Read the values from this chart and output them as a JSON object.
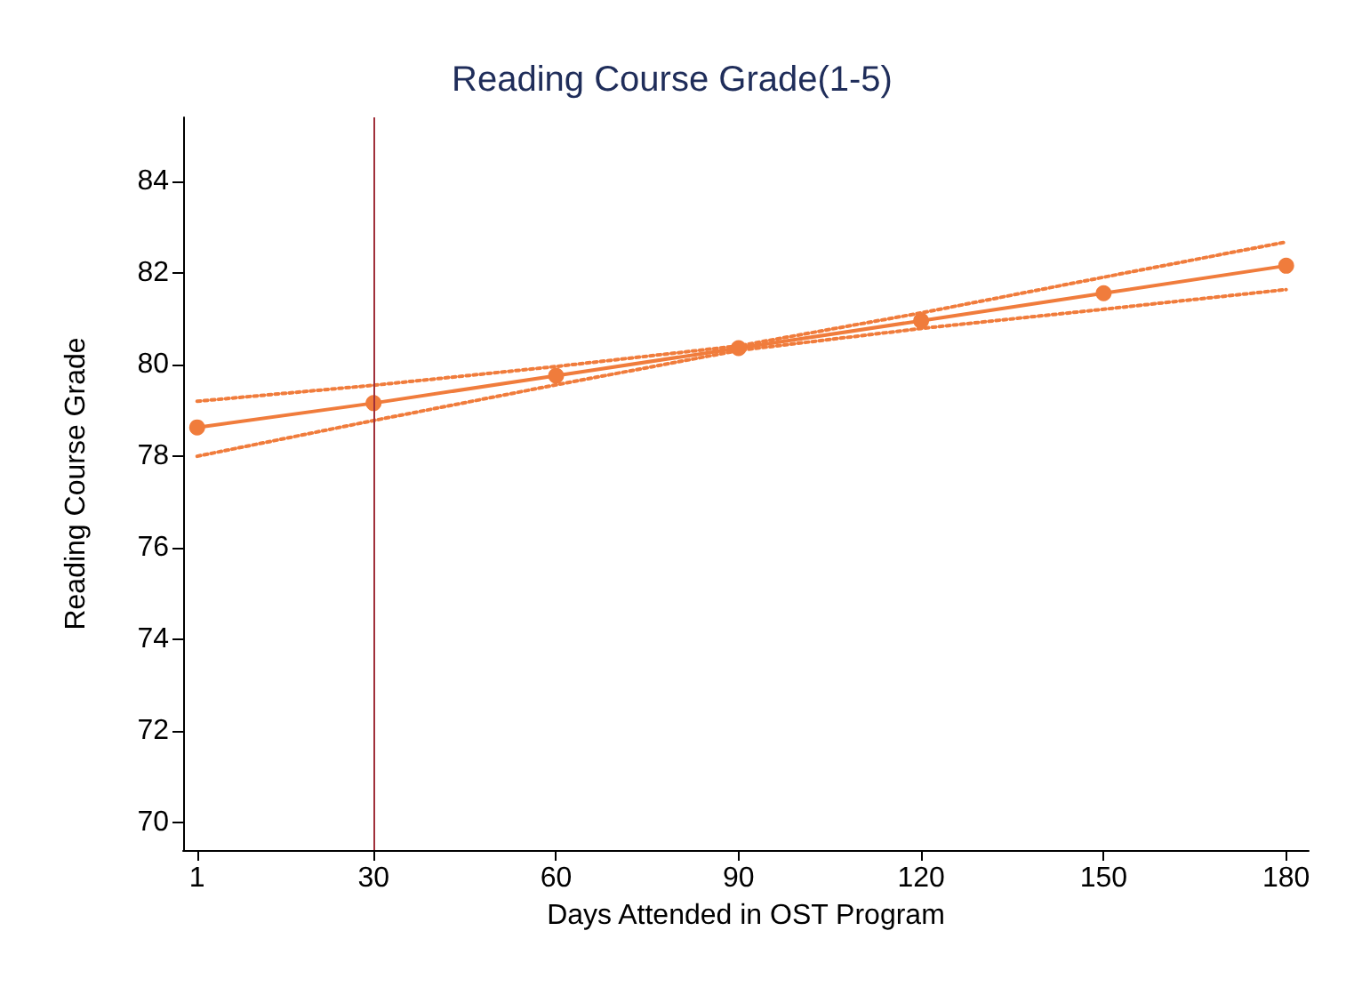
{
  "chart_data": {
    "type": "line",
    "title": "Reading Course Grade(1-5)",
    "xlabel": "Days Attended in OST Program",
    "ylabel": "Reading Course Grade",
    "x": [
      1,
      30,
      60,
      90,
      120,
      150,
      180
    ],
    "series": [
      {
        "color": "#f07c3c",
        "values": [
          78.63,
          79.16,
          79.76,
          80.36,
          80.96,
          81.56,
          82.16
        ],
        "marker": "circle",
        "line_style": "solid"
      },
      {
        "color": "#f07c3c",
        "values": [
          79.2,
          79.55,
          79.96,
          80.41,
          81.13,
          81.91,
          82.68
        ],
        "marker": "none",
        "line_style": "dotted"
      },
      {
        "color": "#f07c3c",
        "values": [
          78.0,
          78.78,
          79.56,
          80.31,
          80.79,
          81.21,
          81.64
        ],
        "marker": "none",
        "line_style": "dotted"
      }
    ],
    "xlim": [
      -1.3,
      183.7
    ],
    "xticks": [
      1,
      30,
      60,
      90,
      120,
      150,
      180
    ],
    "ylim": [
      69.4,
      85.4
    ],
    "yticks": [
      70,
      72,
      74,
      76,
      78,
      80,
      82,
      84
    ],
    "ref_lines": [
      {
        "axis": "x",
        "value": 30,
        "color": "#a0303a",
        "line_style": "solid"
      }
    ],
    "grid": false
  }
}
